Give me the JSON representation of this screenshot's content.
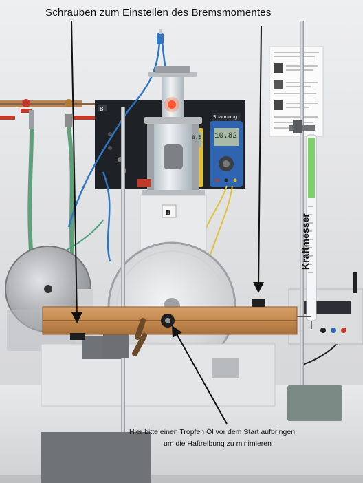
{
  "image": {
    "caption_top": "Schrauben zum Einstellen des Bremsmomentes",
    "caption_vertical": "Kraftmesser",
    "caption_note_line1": "Hier bitte einen Tropfen Öl vor dem Start aufbringen,",
    "caption_note_line2": "um die Haftreibung zu minimieren",
    "panel_letter": "B",
    "plate_letter": "B",
    "meter_tag": "Spannung",
    "meter_left_reading": "8.8",
    "meter_right_reading": "10.82"
  },
  "colors": {
    "wall": "#e3e4e6",
    "panel": "#1e2126",
    "wood": "#c48a4f",
    "meter_yellow": "#e0c23a",
    "meter_blue": "#2f64b0",
    "arrow": "#111111"
  },
  "objects": [
    "annotated-photo",
    "wooden-brake-lever",
    "flywheel-disc",
    "steam-engine-cylinder",
    "spring-balance",
    "retort-stand",
    "digital-multimeter",
    "instruction-sheet"
  ]
}
